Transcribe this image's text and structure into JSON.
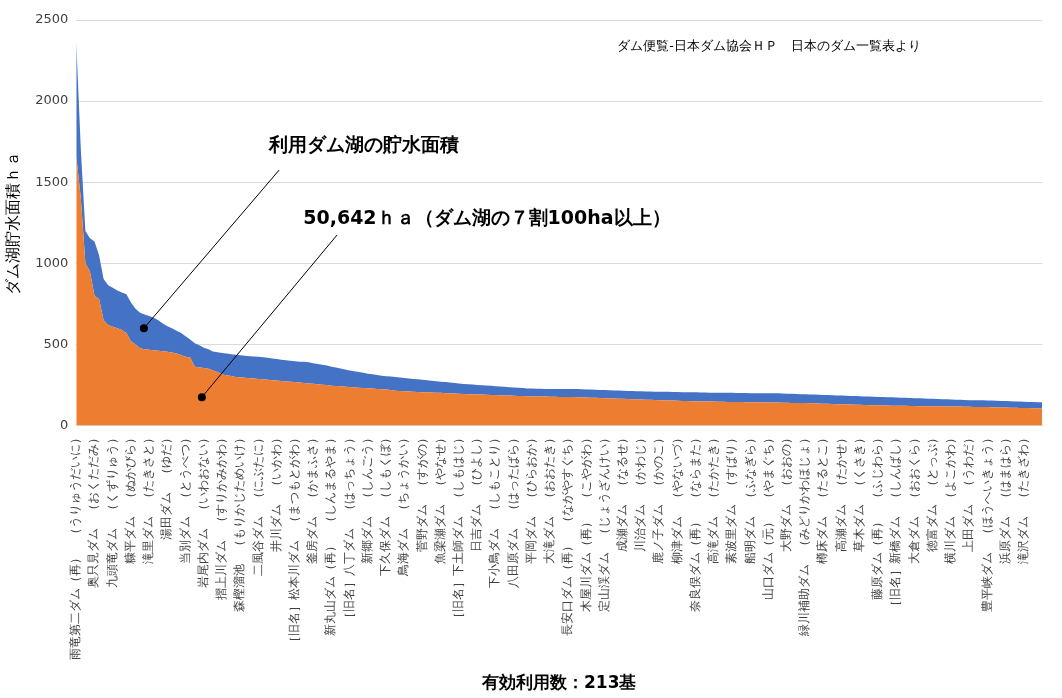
{
  "chart_data": {
    "type": "area",
    "stacked": true,
    "xlabel": "有効利用数：213基",
    "ylabel": "ダム湖貯水面積ｈａ",
    "ylim": [
      0,
      2500
    ],
    "yticks": [
      0,
      500,
      1000,
      1500,
      2000,
      2500
    ],
    "grid": "y",
    "legend": false,
    "annotations": [
      "利用ダム湖の貯水面積",
      "50,642ｈａ（ダム湖の７割100ha以上）",
      "ダム便覧-日本ダム協会ＨＰ　日本のダム一覧表より"
    ],
    "categories": [
      "雨竜第二ダム（再）　（うりゅうだいに）",
      null,
      null,
      null,
      "奥只見ダム　（おくただみ）",
      null,
      null,
      null,
      "九頭竜ダム　（くずりゅう）",
      null,
      null,
      null,
      "糠平ダム　（ぬかびら）",
      null,
      null,
      null,
      "滝里ダム　（たきさと）",
      null,
      null,
      null,
      "湯田ダム　（ゆだ）",
      null,
      null,
      null,
      "当別ダム　（とうべつ）",
      null,
      null,
      null,
      "岩尾内ダム　（いわおない）",
      null,
      null,
      null,
      "摺上川ダム　（すりかみかわ）",
      null,
      null,
      null,
      "森樫溜池　（もりかじためいけ）",
      null,
      null,
      null,
      "二風谷ダム　（にぶたに）",
      null,
      null,
      null,
      "井川ダム　（いかわ）",
      null,
      null,
      null,
      "［旧名］松本川ダム　（まつもとがわ）",
      null,
      null,
      null,
      "釜房ダム　（かまふさ）",
      null,
      null,
      null,
      "新丸山ダム（再）　（しんまるやま）",
      null,
      null,
      null,
      "［旧名］八丁ダム　（はっちょう）",
      null,
      null,
      null,
      "新郷ダム　（しんごう）",
      null,
      null,
      null,
      "下久保ダム　（しもくぼ）",
      null,
      null,
      null,
      "鳥海ダム　（ちょうかい）",
      null,
      null,
      null,
      "菅野ダム　（すがの）",
      null,
      null,
      null,
      "魚梁瀬ダム　（やなせ）",
      null,
      null,
      null,
      "［旧名］下土師ダム　（しもはじ）",
      null,
      null,
      null,
      "日吉ダム　（ひよし）",
      null,
      null,
      null,
      "下小鳥ダム　（しもことり）",
      null,
      null,
      null,
      "八田原ダム　（はったばら）",
      null,
      null,
      null,
      "平岡ダム　（ひらおか）",
      null,
      null,
      null,
      "大滝ダム　（おおたき）",
      null,
      null,
      null,
      "長安口ダム（再）　（ながやすぐち）",
      null,
      null,
      null,
      "木屋川ダム（再）　（こやがわ）",
      null,
      null,
      null,
      "定山渓ダム　（じょうざんけい）",
      null,
      null,
      null,
      "成瀬ダム　（なるせ）",
      null,
      null,
      null,
      "川治ダム　（かわじ）",
      null,
      null,
      null,
      "鹿ノ子ダム　（かのこ）",
      null,
      null,
      null,
      "柳津ダム　（やないづ）",
      null,
      null,
      null,
      "奈良俣ダム（再）　（ならまた）",
      null,
      null,
      null,
      "高滝ダム　（たかたき）",
      null,
      null,
      null,
      "素波里ダム　（すばり）",
      null,
      null,
      null,
      "船明ダム　（ふなぎら）",
      null,
      null,
      null,
      "山口ダム（元）　（やまぐち）",
      null,
      null,
      null,
      "大野ダム　（おおの）",
      null,
      null,
      null,
      "緑川補助ダム　（みどりかわほじょ）",
      null,
      null,
      null,
      "樽床ダム　（たるとこ）",
      null,
      null,
      null,
      "高瀬ダム　（たかせ）",
      null,
      null,
      null,
      "草木ダム　（くさき）",
      null,
      null,
      null,
      "藤原ダム（再）　（ふじわら）",
      null,
      null,
      null,
      "［旧名］新橋ダム　（しんばし）",
      null,
      null,
      null,
      "大倉ダム　（おおくら）",
      null,
      null,
      null,
      "徳富ダム　（とっぷ）",
      null,
      null,
      null,
      "横川ダム　（よこかわ）",
      null,
      null,
      null,
      "上田ダム　（うわだ）",
      null,
      null,
      null,
      "豊平峡ダム　（ほうへいきょう）",
      null,
      null,
      null,
      "浜原ダム　（はまはら）",
      null,
      null,
      null,
      "滝沢ダム　（たきざわ）",
      null,
      null,
      null,
      null
    ],
    "series": [
      {
        "color": "#ed7d31",
        "values": [
          1660,
          1400,
          1000,
          950,
          800,
          780,
          650,
          620,
          610,
          600,
          590,
          570,
          520,
          500,
          476,
          470,
          468,
          465,
          462,
          458,
          455,
          450,
          445,
          435,
          425,
          420,
          363,
          360,
          355,
          350,
          340,
          330,
          315,
          310,
          305,
          300,
          298,
          295,
          292,
          290,
          288,
          285,
          282,
          280,
          278,
          275,
          272,
          270,
          268,
          265,
          262,
          260,
          258,
          255,
          252,
          250,
          246,
          244,
          242,
          240,
          238,
          236,
          234,
          232,
          230,
          228,
          226,
          224,
          222,
          219,
          215,
          213,
          211,
          210,
          208,
          207,
          206,
          205,
          204,
          203,
          202,
          200,
          199,
          198,
          197,
          195,
          194,
          193,
          192,
          191,
          190,
          189,
          188,
          187,
          186,
          185,
          184,
          183,
          182,
          181,
          180,
          180,
          179,
          179,
          178,
          178,
          177,
          177,
          176,
          176,
          175,
          174,
          173,
          172,
          171,
          170,
          169,
          168,
          167,
          166,
          165,
          164,
          163,
          162,
          161,
          160,
          159,
          158,
          157,
          156,
          155,
          154,
          153,
          152,
          151,
          150,
          150,
          149,
          149,
          148,
          148,
          147,
          147,
          146,
          146,
          145,
          145,
          144,
          144,
          144,
          144,
          143,
          143,
          142,
          142,
          141,
          141,
          140,
          140,
          139,
          139,
          138,
          137,
          136,
          135,
          134,
          133,
          132,
          131,
          130,
          130,
          129,
          128,
          127,
          126,
          125,
          125,
          124,
          124,
          123,
          123,
          122,
          122,
          121,
          121,
          120,
          120,
          120,
          119,
          119,
          119,
          118,
          118,
          117,
          117,
          116,
          116,
          115,
          115,
          114,
          114,
          113,
          112,
          112,
          111,
          110,
          110,
          109,
          108,
          108,
          107,
          106,
          105
        ]
      },
      {
        "color": "#4472c4",
        "values": [
          700,
          300,
          200,
          205,
          334,
          270,
          254,
          245,
          240,
          233,
          230,
          240,
          238,
          220,
          219,
          215,
          208,
          200,
          188,
          172,
          158,
          150,
          140,
          135,
          126,
          110,
          144,
          135,
          125,
          120,
          117,
          122,
          133,
          134,
          135,
          137,
          136,
          136,
          136,
          136,
          137,
          137,
          136,
          134,
          132,
          131,
          131,
          130,
          129,
          129,
          132,
          130,
          127,
          125,
          123,
          120,
          117,
          114,
          110,
          106,
          102,
          99,
          96,
          93,
          90,
          88,
          86,
          84,
          82,
          83,
          85,
          84,
          83,
          81,
          80,
          78,
          76,
          74,
          72,
          70,
          68,
          68,
          66,
          65,
          63,
          62,
          61,
          60,
          59,
          58,
          57,
          56,
          55,
          54,
          53,
          52,
          51,
          50,
          49,
          48,
          48,
          47,
          48,
          47,
          48,
          47,
          48,
          48,
          49,
          49,
          50,
          50,
          50,
          50,
          50,
          50,
          50,
          50,
          50,
          50,
          50,
          50,
          50,
          50,
          50,
          50,
          51,
          51,
          52,
          52,
          53,
          53,
          54,
          54,
          55,
          55,
          55,
          55,
          55,
          55,
          55,
          56,
          55,
          56,
          56,
          56,
          56,
          57,
          56,
          56,
          56,
          57,
          57,
          57,
          57,
          57,
          56,
          56,
          55,
          55,
          54,
          54,
          54,
          54,
          54,
          54,
          54,
          54,
          54,
          54,
          53,
          53,
          53,
          53,
          53,
          53,
          52,
          52,
          51,
          51,
          50,
          50,
          49,
          49,
          48,
          48,
          47,
          46,
          46,
          45,
          44,
          44,
          43,
          43,
          42,
          42,
          41,
          42,
          41,
          42,
          41,
          41,
          41,
          40,
          40,
          40,
          39,
          39,
          39,
          38,
          38,
          38,
          39
        ]
      }
    ]
  }
}
